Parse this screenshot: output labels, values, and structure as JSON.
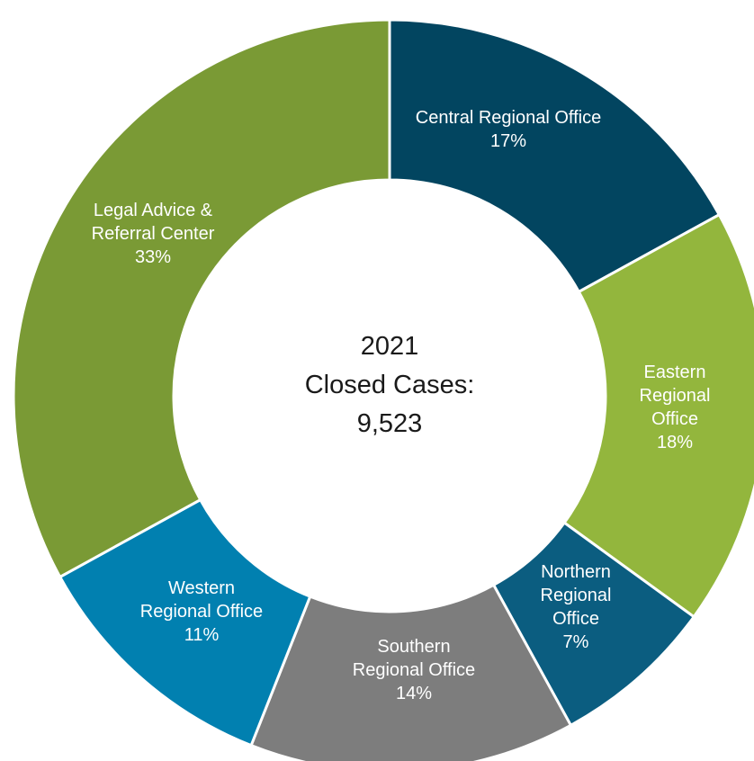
{
  "chart_data": {
    "type": "pie",
    "donut": true,
    "center_text": [
      "2021",
      "Closed Cases:",
      "9,523"
    ],
    "slices": [
      {
        "label_lines": [
          "Central Regional Office",
          "17%"
        ],
        "value": 17,
        "color": "#024560",
        "label_color": "#ffffff"
      },
      {
        "label_lines": [
          "Eastern",
          "Regional",
          "Office",
          "18%"
        ],
        "value": 18,
        "color": "#93b63d",
        "label_color": "#ffffff"
      },
      {
        "label_lines": [
          "Northern",
          "Regional",
          "Office",
          "7%"
        ],
        "value": 7,
        "color": "#0b5d80",
        "label_color": "#ffffff"
      },
      {
        "label_lines": [
          "Southern",
          "Regional Office",
          "14%"
        ],
        "value": 14,
        "color": "#7d7d7d",
        "label_color": "#ffffff"
      },
      {
        "label_lines": [
          "Western",
          "Regional Office",
          "11%"
        ],
        "value": 11,
        "color": "#0180b0",
        "label_color": "#ffffff"
      },
      {
        "label_lines": [
          "Legal Advice &",
          "Referral Center",
          "33%"
        ],
        "value": 33,
        "color": "#7a9a35",
        "label_color": "#ffffff"
      }
    ]
  }
}
